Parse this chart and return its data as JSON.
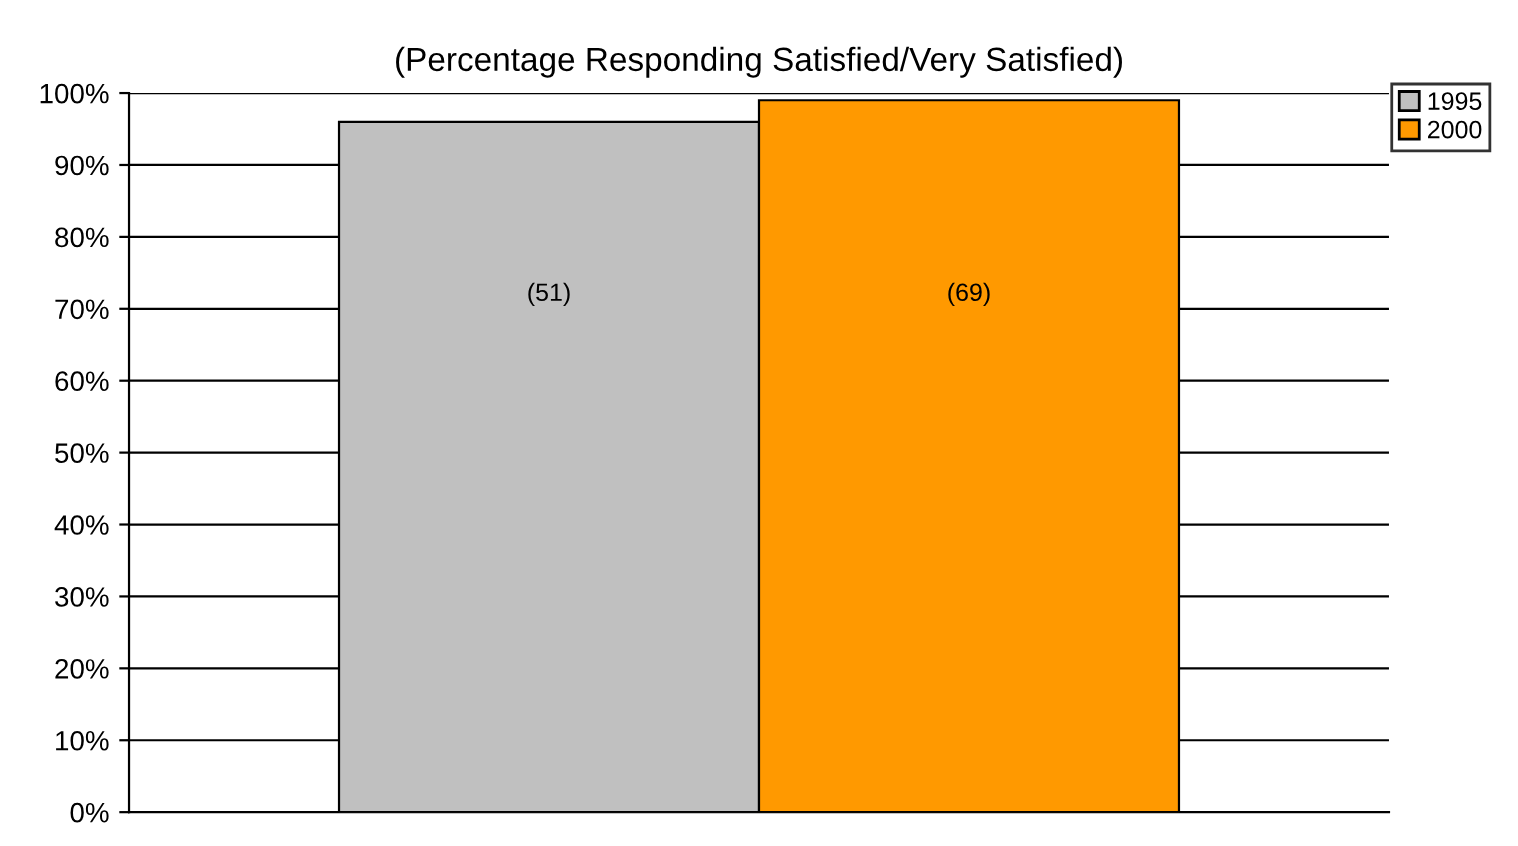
{
  "chart_data": {
    "type": "bar",
    "title": "(Percentage Responding Satisfied/Very Satisfied)",
    "categories": [
      null
    ],
    "series": [
      {
        "name": "1995",
        "color": "#c0c0c0",
        "values": [
          96
        ]
      },
      {
        "name": "2000",
        "color": "#ff9900",
        "values": [
          99
        ]
      }
    ],
    "annotations": [
      "(51)",
      "(69)"
    ],
    "ylim": [
      0,
      100
    ],
    "yticks": [
      {
        "value": 0,
        "label": "0%"
      },
      {
        "value": 10,
        "label": "10%"
      },
      {
        "value": 20,
        "label": "20%"
      },
      {
        "value": 30,
        "label": "30%"
      },
      {
        "value": 40,
        "label": "40%"
      },
      {
        "value": 50,
        "label": "50%"
      },
      {
        "value": 60,
        "label": "60%"
      },
      {
        "value": 70,
        "label": "70%"
      },
      {
        "value": 80,
        "label": "80%"
      },
      {
        "value": 90,
        "label": "90%"
      },
      {
        "value": 100,
        "label": "100%"
      }
    ],
    "grid": "y",
    "legend": "top right"
  }
}
